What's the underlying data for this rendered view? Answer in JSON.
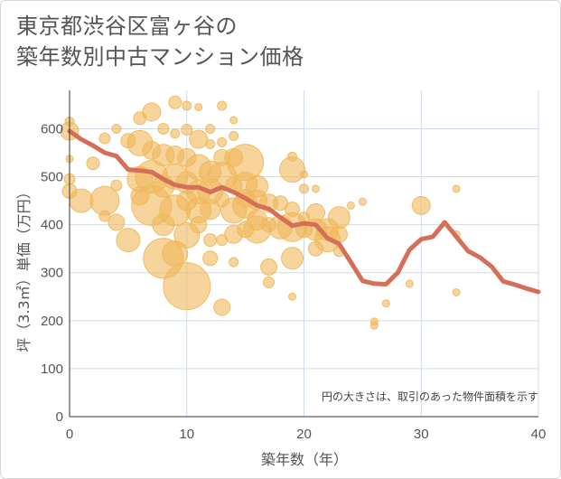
{
  "title_lines": [
    "東京都渋谷区富ヶ谷の",
    "築年数別中古マンション価格"
  ],
  "chart_data": {
    "type": "scatter",
    "xlabel": "築年数（年）",
    "ylabel": "坪（3.3㎡）単価（万円）",
    "xlim": [
      0,
      40
    ],
    "ylim": [
      0,
      680
    ],
    "x_ticks": [
      0,
      10,
      20,
      30,
      40
    ],
    "y_ticks": [
      0,
      100,
      200,
      300,
      400,
      500,
      600
    ],
    "grid": true,
    "note": "円の大きさは、取引のあった物件面積を示す",
    "colors": {
      "bubble": "#F0B85A",
      "line": "#D4705A",
      "grid": "#cfdbe8"
    },
    "line": {
      "x": [
        0,
        1,
        2,
        3,
        4,
        5,
        6,
        7,
        8,
        9,
        10,
        11,
        12,
        13,
        14,
        15,
        16,
        17,
        18,
        19,
        20,
        21,
        22,
        23,
        24,
        25,
        26,
        27,
        28,
        29,
        30,
        31,
        32,
        33,
        34,
        35,
        36,
        37,
        38,
        39,
        40
      ],
      "y": [
        595,
        578,
        565,
        550,
        543,
        515,
        513,
        510,
        495,
        483,
        478,
        478,
        468,
        478,
        468,
        455,
        440,
        433,
        415,
        398,
        403,
        400,
        372,
        360,
        322,
        283,
        277,
        276,
        300,
        348,
        370,
        375,
        405,
        375,
        345,
        332,
        313,
        282,
        275,
        267,
        260
      ]
    },
    "bubbles": [
      {
        "x": 0,
        "y": 615,
        "r": 5
      },
      {
        "x": 0,
        "y": 595,
        "r": 10
      },
      {
        "x": 0,
        "y": 537,
        "r": 4
      },
      {
        "x": 0,
        "y": 495,
        "r": 6
      },
      {
        "x": 0,
        "y": 470,
        "r": 8
      },
      {
        "x": 1,
        "y": 450,
        "r": 13
      },
      {
        "x": 2,
        "y": 528,
        "r": 7
      },
      {
        "x": 3,
        "y": 580,
        "r": 6
      },
      {
        "x": 3,
        "y": 450,
        "r": 16
      },
      {
        "x": 3,
        "y": 418,
        "r": 6
      },
      {
        "x": 4,
        "y": 600,
        "r": 5
      },
      {
        "x": 4,
        "y": 482,
        "r": 6
      },
      {
        "x": 4,
        "y": 405,
        "r": 9
      },
      {
        "x": 5,
        "y": 575,
        "r": 8
      },
      {
        "x": 5,
        "y": 368,
        "r": 13
      },
      {
        "x": 6,
        "y": 622,
        "r": 7
      },
      {
        "x": 6,
        "y": 570,
        "r": 14
      },
      {
        "x": 6,
        "y": 495,
        "r": 14
      },
      {
        "x": 6,
        "y": 460,
        "r": 10
      },
      {
        "x": 7,
        "y": 635,
        "r": 10
      },
      {
        "x": 7,
        "y": 555,
        "r": 10
      },
      {
        "x": 7,
        "y": 500,
        "r": 18
      },
      {
        "x": 7,
        "y": 440,
        "r": 22
      },
      {
        "x": 8,
        "y": 600,
        "r": 6
      },
      {
        "x": 8,
        "y": 545,
        "r": 12
      },
      {
        "x": 8,
        "y": 480,
        "r": 12
      },
      {
        "x": 8,
        "y": 400,
        "r": 12
      },
      {
        "x": 8,
        "y": 330,
        "r": 22
      },
      {
        "x": 9,
        "y": 655,
        "r": 7
      },
      {
        "x": 9,
        "y": 590,
        "r": 5
      },
      {
        "x": 9,
        "y": 545,
        "r": 10
      },
      {
        "x": 9,
        "y": 500,
        "r": 14
      },
      {
        "x": 9,
        "y": 430,
        "r": 17
      },
      {
        "x": 9,
        "y": 340,
        "r": 14
      },
      {
        "x": 10,
        "y": 648,
        "r": 5
      },
      {
        "x": 10,
        "y": 598,
        "r": 6
      },
      {
        "x": 10,
        "y": 540,
        "r": 10
      },
      {
        "x": 10,
        "y": 488,
        "r": 12
      },
      {
        "x": 10,
        "y": 450,
        "r": 11
      },
      {
        "x": 10,
        "y": 378,
        "r": 14
      },
      {
        "x": 10,
        "y": 272,
        "r": 26
      },
      {
        "x": 11,
        "y": 645,
        "r": 4
      },
      {
        "x": 11,
        "y": 578,
        "r": 10
      },
      {
        "x": 11,
        "y": 520,
        "r": 14
      },
      {
        "x": 11,
        "y": 468,
        "r": 13
      },
      {
        "x": 11,
        "y": 430,
        "r": 14
      },
      {
        "x": 11,
        "y": 400,
        "r": 9
      },
      {
        "x": 12,
        "y": 600,
        "r": 5
      },
      {
        "x": 12,
        "y": 568,
        "r": 5
      },
      {
        "x": 12,
        "y": 510,
        "r": 12
      },
      {
        "x": 12,
        "y": 470,
        "r": 14
      },
      {
        "x": 12,
        "y": 432,
        "r": 11
      },
      {
        "x": 12,
        "y": 368,
        "r": 7
      },
      {
        "x": 12,
        "y": 330,
        "r": 8
      },
      {
        "x": 13,
        "y": 648,
        "r": 5
      },
      {
        "x": 13,
        "y": 572,
        "r": 5
      },
      {
        "x": 13,
        "y": 540,
        "r": 9
      },
      {
        "x": 13,
        "y": 500,
        "r": 16
      },
      {
        "x": 13,
        "y": 452,
        "r": 8
      },
      {
        "x": 13,
        "y": 368,
        "r": 6
      },
      {
        "x": 13,
        "y": 228,
        "r": 9
      },
      {
        "x": 14,
        "y": 618,
        "r": 4
      },
      {
        "x": 14,
        "y": 585,
        "r": 5
      },
      {
        "x": 14,
        "y": 540,
        "r": 10
      },
      {
        "x": 14,
        "y": 482,
        "r": 9
      },
      {
        "x": 14,
        "y": 430,
        "r": 14
      },
      {
        "x": 14,
        "y": 380,
        "r": 10
      },
      {
        "x": 14,
        "y": 322,
        "r": 5
      },
      {
        "x": 15,
        "y": 530,
        "r": 20
      },
      {
        "x": 15,
        "y": 485,
        "r": 13
      },
      {
        "x": 15,
        "y": 455,
        "r": 10
      },
      {
        "x": 15,
        "y": 440,
        "r": 14
      },
      {
        "x": 15,
        "y": 390,
        "r": 9
      },
      {
        "x": 16,
        "y": 480,
        "r": 12
      },
      {
        "x": 16,
        "y": 452,
        "r": 11
      },
      {
        "x": 16,
        "y": 410,
        "r": 11
      },
      {
        "x": 16,
        "y": 390,
        "r": 15
      },
      {
        "x": 17,
        "y": 445,
        "r": 10
      },
      {
        "x": 17,
        "y": 400,
        "r": 8
      },
      {
        "x": 17,
        "y": 312,
        "r": 9
      },
      {
        "x": 17,
        "y": 280,
        "r": 6
      },
      {
        "x": 18,
        "y": 445,
        "r": 8
      },
      {
        "x": 18,
        "y": 395,
        "r": 13
      },
      {
        "x": 19,
        "y": 542,
        "r": 5
      },
      {
        "x": 19,
        "y": 515,
        "r": 14
      },
      {
        "x": 19,
        "y": 432,
        "r": 8
      },
      {
        "x": 19,
        "y": 395,
        "r": 16
      },
      {
        "x": 19,
        "y": 330,
        "r": 12
      },
      {
        "x": 19,
        "y": 250,
        "r": 4
      },
      {
        "x": 20,
        "y": 505,
        "r": 4
      },
      {
        "x": 20,
        "y": 475,
        "r": 5
      },
      {
        "x": 20,
        "y": 415,
        "r": 6
      },
      {
        "x": 20,
        "y": 390,
        "r": 9
      },
      {
        "x": 21,
        "y": 475,
        "r": 4
      },
      {
        "x": 21,
        "y": 425,
        "r": 10
      },
      {
        "x": 21,
        "y": 390,
        "r": 12
      },
      {
        "x": 21,
        "y": 350,
        "r": 8
      },
      {
        "x": 22,
        "y": 390,
        "r": 12
      },
      {
        "x": 22,
        "y": 370,
        "r": 14
      },
      {
        "x": 23,
        "y": 415,
        "r": 12
      },
      {
        "x": 23,
        "y": 380,
        "r": 9
      },
      {
        "x": 23,
        "y": 345,
        "r": 6
      },
      {
        "x": 24,
        "y": 440,
        "r": 4
      },
      {
        "x": 25,
        "y": 448,
        "r": 4
      },
      {
        "x": 26,
        "y": 198,
        "r": 4
      },
      {
        "x": 26,
        "y": 190,
        "r": 4
      },
      {
        "x": 27,
        "y": 236,
        "r": 4
      },
      {
        "x": 29,
        "y": 277,
        "r": 4
      },
      {
        "x": 30,
        "y": 440,
        "r": 10
      },
      {
        "x": 33,
        "y": 475,
        "r": 4
      },
      {
        "x": 33,
        "y": 380,
        "r": 4
      },
      {
        "x": 33,
        "y": 259,
        "r": 4
      }
    ]
  }
}
